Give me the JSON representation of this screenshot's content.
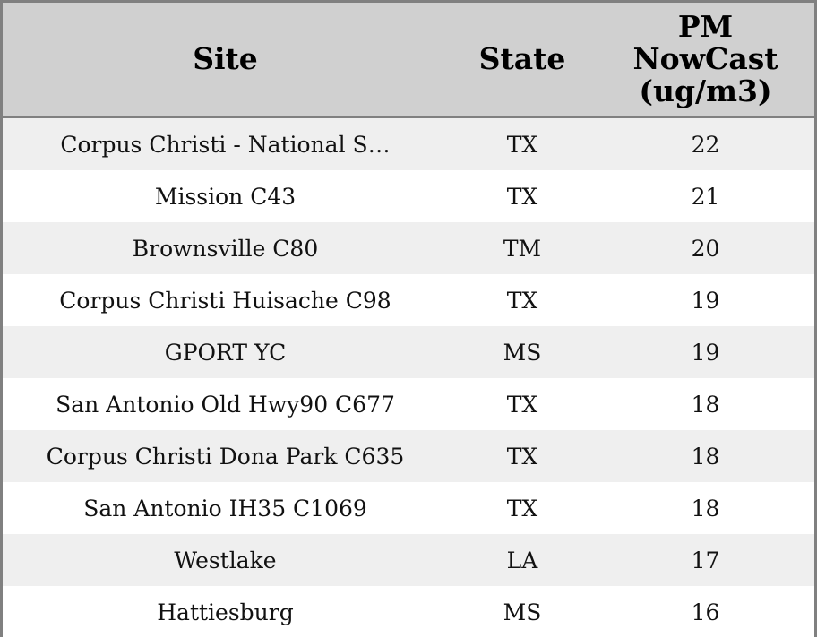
{
  "table": {
    "columns": [
      "Site",
      "State",
      "PM NowCast (ug/m3)"
    ],
    "rows": [
      [
        "Corpus Christi - National S…",
        "TX",
        22
      ],
      [
        "Mission C43",
        "TX",
        21
      ],
      [
        "Brownsville C80",
        "TM",
        20
      ],
      [
        "Corpus Christi Huisache C98",
        "TX",
        19
      ],
      [
        "GPORT YC",
        "MS",
        19
      ],
      [
        "San Antonio Old Hwy90 C677",
        "TX",
        18
      ],
      [
        "Corpus Christi Dona Park C635",
        "TX",
        18
      ],
      [
        "San Antonio IH35 C1069",
        "TX",
        18
      ],
      [
        "Westlake",
        "LA",
        17
      ],
      [
        "Hattiesburg",
        "MS",
        16
      ]
    ]
  }
}
